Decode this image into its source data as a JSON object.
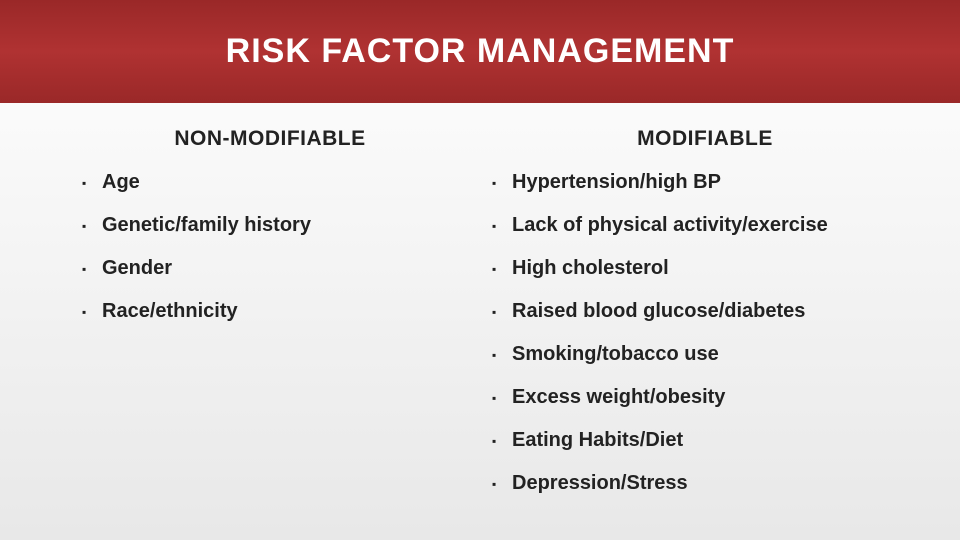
{
  "title": "RISK FACTOR MANAGEMENT",
  "columns": {
    "left": {
      "header": "NON-MODIFIABLE",
      "items": [
        "Age",
        "Genetic/family history",
        "Gender",
        "Race/ethnicity"
      ]
    },
    "right": {
      "header": "MODIFIABLE",
      "items": [
        "Hypertension/high BP",
        "Lack of physical activity/exercise",
        "High cholesterol",
        "Raised blood glucose/diabetes",
        "Smoking/tobacco use",
        "Excess weight/obesity",
        "Eating Habits/Diet",
        "Depression/Stress"
      ]
    }
  },
  "style": {
    "slide_width": 960,
    "slide_height": 540,
    "title_bar_height": 103,
    "title_bar_gradient": [
      "#9a2828",
      "#b03232",
      "#9a2828"
    ],
    "title_color": "#ffffff",
    "title_fontsize": 34,
    "body_bg_gradient": [
      "#ffffff",
      "#e8e8e8"
    ],
    "header_fontsize": 21,
    "item_fontsize": 20,
    "text_color": "#222222",
    "bullet_char": "▪",
    "item_spacing": 20
  }
}
